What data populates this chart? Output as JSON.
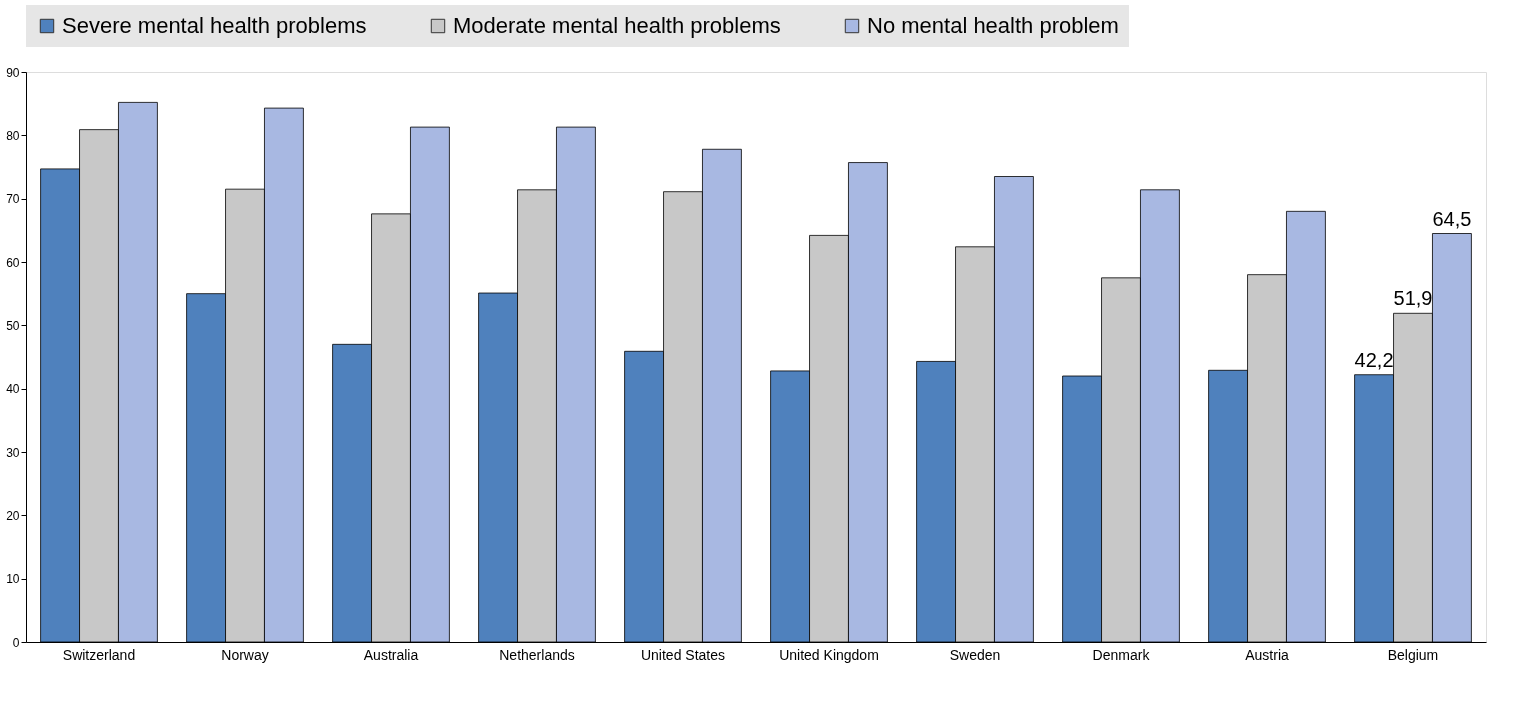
{
  "chart_data": {
    "type": "bar",
    "categories": [
      "Switzerland",
      "Norway",
      "Australia",
      "Netherlands",
      "United States",
      "United Kingdom",
      "Sweden",
      "Denmark",
      "Austria",
      "Belgium"
    ],
    "series": [
      {
        "name": "Severe mental health problems",
        "color": "#4f81bd",
        "values": [
          74.7,
          55.0,
          47.0,
          55.1,
          45.9,
          42.8,
          44.3,
          42.0,
          42.9,
          42.2
        ],
        "value_labels": [
          null,
          null,
          null,
          null,
          null,
          null,
          null,
          null,
          null,
          "42,2"
        ]
      },
      {
        "name": "Moderate mental health problems",
        "color": "#c8c8c8",
        "values": [
          80.9,
          71.5,
          67.6,
          71.4,
          71.1,
          64.2,
          62.4,
          57.5,
          58.0,
          51.9
        ],
        "value_labels": [
          null,
          null,
          null,
          null,
          null,
          null,
          null,
          null,
          null,
          "51,9"
        ]
      },
      {
        "name": "No mental health problem",
        "color": "#a8b8e2",
        "values": [
          85.2,
          84.3,
          81.3,
          81.3,
          77.8,
          75.7,
          73.5,
          71.4,
          68.0,
          64.5
        ],
        "value_labels": [
          null,
          null,
          null,
          null,
          null,
          null,
          null,
          null,
          null,
          "64,5"
        ]
      }
    ],
    "ylim": [
      0,
      90
    ],
    "yticks": [
      0,
      10,
      20,
      30,
      40,
      50,
      60,
      70,
      80,
      90
    ],
    "grid": false,
    "legend": "top"
  }
}
